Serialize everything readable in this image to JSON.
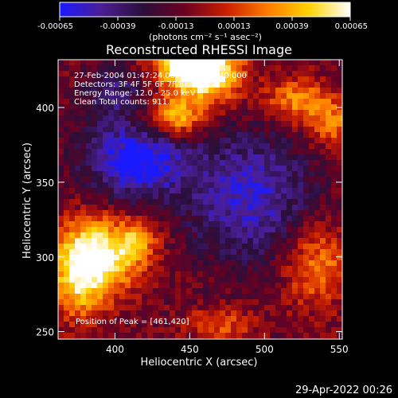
{
  "colorbar": {
    "ticks": [
      "-0.00065",
      "-0.00039",
      "-0.00013",
      "0.00013",
      "0.00039",
      "0.00065"
    ],
    "unit_label": "(photons cm⁻² s⁻¹ asec⁻²)",
    "stops": [
      "#1a1aff",
      "#4b1e95",
      "#2a0f3a",
      "#6a0022",
      "#c81e00",
      "#ff7a00",
      "#ffd200",
      "#ffffff"
    ]
  },
  "annotations": {
    "time_range": "27-Feb-2004 01:47:24.000 to 01:48:40.000",
    "detectors": "Detectors: 3F 4F 5F 6F 7F 8F  Ptest 0",
    "energy": "Energy Range: 12.0 - 25.0 keV",
    "clean": "Clean    Total counts: 911.",
    "peak": "Position of Peak = [461,420]"
  },
  "footer": {
    "date": "29-Apr-2022 00:26"
  },
  "chart_data": {
    "type": "heatmap",
    "title": "Reconstructed RHESSI Image",
    "xlabel": "Heliocentric X (arcsec)",
    "ylabel": "Heliocentric Y (arcsec)",
    "xlim": [
      362,
      552
    ],
    "ylim": [
      245,
      432
    ],
    "xticks": [
      400,
      450,
      500,
      550
    ],
    "yticks": [
      250,
      300,
      350,
      400
    ],
    "value_range": [
      -0.00065,
      0.00065
    ],
    "grid": false,
    "sources": [
      {
        "x": 461,
        "y": 424,
        "sx": 16,
        "sy": 14,
        "amp": 0.00085
      },
      {
        "x": 445,
        "y": 432,
        "sx": 14,
        "sy": 10,
        "amp": 0.00065
      },
      {
        "x": 440,
        "y": 393,
        "sx": 14,
        "sy": 10,
        "amp": 0.00055
      },
      {
        "x": 520,
        "y": 405,
        "sx": 14,
        "sy": 10,
        "amp": 0.00042
      },
      {
        "x": 545,
        "y": 390,
        "sx": 12,
        "sy": 12,
        "amp": 0.00038
      },
      {
        "x": 390,
        "y": 300,
        "sx": 18,
        "sy": 18,
        "amp": 0.0007
      },
      {
        "x": 375,
        "y": 285,
        "sx": 12,
        "sy": 20,
        "amp": 0.00045
      },
      {
        "x": 415,
        "y": 310,
        "sx": 10,
        "sy": 10,
        "amp": 0.00035
      },
      {
        "x": 535,
        "y": 295,
        "sx": 16,
        "sy": 20,
        "amp": 0.0004
      },
      {
        "x": 470,
        "y": 255,
        "sx": 16,
        "sy": 8,
        "amp": 0.0003
      },
      {
        "x": 415,
        "y": 365,
        "sx": 24,
        "sy": 18,
        "amp": -0.0006
      },
      {
        "x": 490,
        "y": 340,
        "sx": 30,
        "sy": 30,
        "amp": -0.00045
      },
      {
        "x": 400,
        "y": 410,
        "sx": 14,
        "sy": 12,
        "amp": -0.0003
      }
    ]
  }
}
